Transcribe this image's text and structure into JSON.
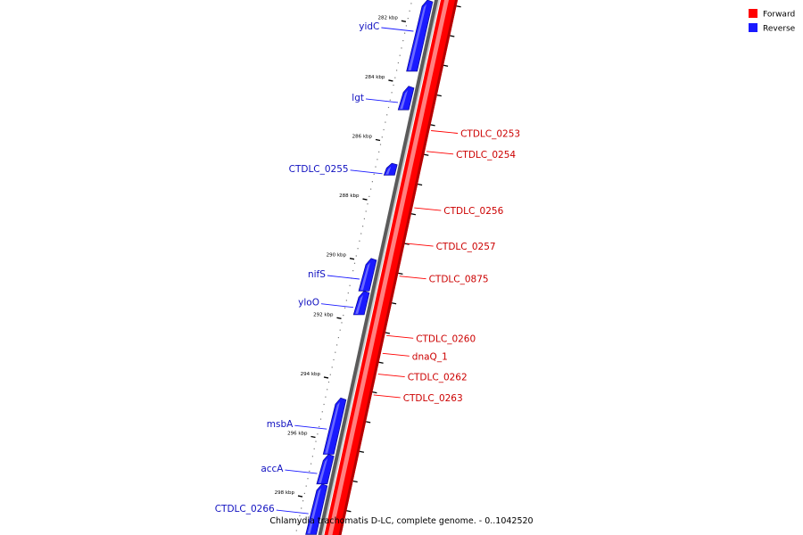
{
  "caption": "Chlamydia trachomatis D-LC, complete genome. - 0..1042520",
  "colors": {
    "forward": "#ff0000",
    "reverse": "#1a1aff",
    "forward_label": "#cc0000",
    "reverse_label": "#1010c0"
  },
  "legend": [
    {
      "label": "Forward",
      "color": "#ff0000"
    },
    {
      "label": "Reverse",
      "color": "#1a1aff"
    }
  ],
  "chart_data": {
    "type": "genome-map",
    "caption": "Chlamydia trachomatis D-LC, complete genome. - 0..1042520",
    "axis": {
      "unit": "kbp",
      "visible_range_kbp": [
        281.3,
        299.3
      ],
      "labeled_ticks": [
        "282 kbp",
        "284 kbp",
        "286 kbp",
        "288 kbp",
        "290 kbp",
        "292 kbp",
        "294 kbp",
        "296 kbp",
        "298 kbp"
      ]
    },
    "genes": {
      "forward": [
        {
          "name": "CTDLC_0253",
          "pos_kbp": 285.7
        },
        {
          "name": "CTDLC_0254",
          "pos_kbp": 286.4
        },
        {
          "name": "CTDLC_0256",
          "pos_kbp": 288.3
        },
        {
          "name": "CTDLC_0257",
          "pos_kbp": 289.5
        },
        {
          "name": "CTDLC_0875",
          "pos_kbp": 290.6
        },
        {
          "name": "CTDLC_0260",
          "pos_kbp": 292.6
        },
        {
          "name": "dnaQ_1",
          "pos_kbp": 293.2
        },
        {
          "name": "CTDLC_0262",
          "pos_kbp": 293.9
        },
        {
          "name": "CTDLC_0263",
          "pos_kbp": 294.6
        }
      ],
      "reverse": [
        {
          "name": "yidC",
          "start_kbp": 281.3,
          "end_kbp": 283.7
        },
        {
          "name": "lgt",
          "start_kbp": 284.2,
          "end_kbp": 285.0
        },
        {
          "name": "CTDLC_0255",
          "start_kbp": 286.8,
          "end_kbp": 287.2
        },
        {
          "name": "nifS",
          "start_kbp": 290.0,
          "end_kbp": 291.1
        },
        {
          "name": "yloO",
          "start_kbp": 291.1,
          "end_kbp": 291.9
        },
        {
          "name": "msbA",
          "start_kbp": 294.7,
          "end_kbp": 296.6
        },
        {
          "name": "accA",
          "start_kbp": 296.6,
          "end_kbp": 297.6
        },
        {
          "name": "CTDLC_0266",
          "start_kbp": 297.6,
          "end_kbp": 299.3
        }
      ]
    }
  }
}
